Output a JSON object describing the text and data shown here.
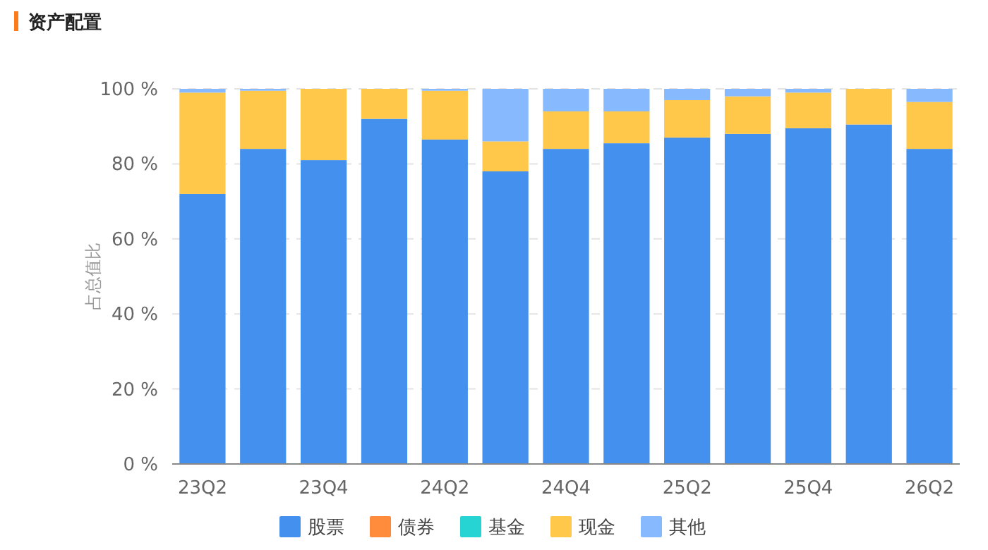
{
  "chart_data": {
    "type": "bar",
    "stacked": true,
    "title": "资产配置",
    "ylabel": "占总值比",
    "categories": [
      "23Q2",
      null,
      "23Q4",
      null,
      "24Q2",
      null,
      "24Q4",
      null,
      "25Q2",
      null,
      "25Q4",
      null,
      "26Q2"
    ],
    "series": [
      {
        "name": "股票",
        "color": "#4390ee",
        "values": [
          72,
          84,
          81,
          92,
          86.5,
          78,
          84,
          85.5,
          87,
          88,
          89.5,
          90.5,
          84
        ]
      },
      {
        "name": "债券",
        "color": "#ff8c3c",
        "values": [
          0,
          0,
          0,
          0,
          0,
          0,
          0,
          0,
          0,
          0,
          0,
          0,
          0
        ]
      },
      {
        "name": "基金",
        "color": "#26d4d4",
        "values": [
          0,
          0,
          0,
          0,
          0,
          0,
          0,
          0,
          0,
          0,
          0,
          0,
          0
        ]
      },
      {
        "name": "现金",
        "color": "#ffc84a",
        "values": [
          27,
          15.5,
          19,
          8,
          13,
          8,
          10,
          8.5,
          10,
          10,
          9.5,
          9.5,
          12.5
        ]
      },
      {
        "name": "其他",
        "color": "#86b9fd",
        "values": [
          1,
          0.5,
          0,
          0,
          0.5,
          14,
          6,
          6,
          3,
          2,
          1,
          0,
          3.5
        ]
      }
    ],
    "ylim": [
      0,
      100
    ],
    "yticks": [
      {
        "value": 0,
        "label": "0 %"
      },
      {
        "value": 20,
        "label": "20 %"
      },
      {
        "value": 40,
        "label": "40 %"
      },
      {
        "value": 60,
        "label": "60 %"
      },
      {
        "value": 80,
        "label": "80 %"
      },
      {
        "value": 100,
        "label": "100 %"
      }
    ],
    "grid": "y",
    "legend": "bottom"
  }
}
